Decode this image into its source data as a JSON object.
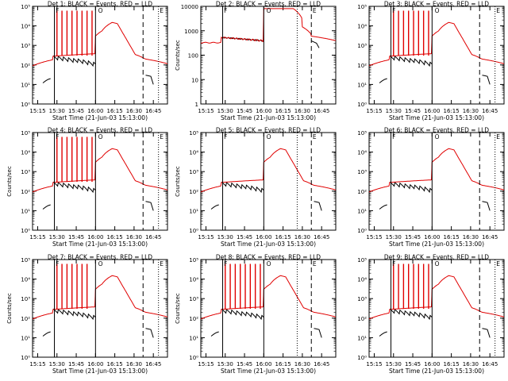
{
  "page": {
    "background": "#ffffff",
    "axis_color": "#000000"
  },
  "chart_data": [
    {
      "type": "line",
      "title": "Det 1: BLACK = Events, RED = LLD",
      "xlabel": "Start Time (21-Jun-03 15:13:00)",
      "ylabel": "",
      "ylog": true,
      "yticks": [
        "10⁰",
        "10¹",
        "10²",
        "10³",
        "10⁴",
        "10⁵"
      ],
      "ylim": [
        1,
        100000
      ],
      "xticks": [
        "15:15",
        "15:30",
        "15:45",
        "16:00",
        "16:15",
        "16:30",
        "16:45"
      ],
      "xlim_minutes": [
        -2,
        103
      ],
      "markers": {
        "solid": [
          15,
          47
        ],
        "dashed": [
          84
        ],
        "dotted": [
          96
        ]
      },
      "marker_labels": [
        {
          "text": "F",
          "x": 16
        },
        {
          "text": "O",
          "x": 49
        },
        {
          "text": "E",
          "x": 97
        }
      ],
      "series": [
        {
          "color": "#000000",
          "shape": "events",
          "level": 1
        },
        {
          "color": "#e00000",
          "shape": "lld",
          "level": 1,
          "spikes": 8
        }
      ]
    },
    {
      "type": "line",
      "title": "Det 2: BLACK = Events, RED = LLD",
      "xlabel": "Start Time (21-Jun-03 15:13:00)",
      "ylabel": "Counts/sec",
      "ylog": true,
      "yticks": [
        "1",
        "10",
        "100",
        "1000",
        "10000"
      ],
      "ylim": [
        1,
        15000
      ],
      "xticks": [
        "15:15",
        "15:30",
        "15:45",
        "16:00",
        "16:15",
        "16:30",
        "16:45"
      ],
      "xlim_minutes": [
        -2,
        103
      ],
      "markers": {
        "solid": [
          15,
          47
        ],
        "dashed": [
          84
        ],
        "dotted": [
          73
        ]
      },
      "marker_labels": [
        {
          "text": "F",
          "x": 16
        },
        {
          "text": "O",
          "x": 49
        },
        {
          "text": "E",
          "x": 85
        }
      ],
      "series": [
        {
          "color": "#000000",
          "shape": "events",
          "level": 2
        },
        {
          "color": "#e00000",
          "shape": "lld",
          "level": 2,
          "spikes": 0
        }
      ]
    },
    {
      "type": "line",
      "title": "Det 3: BLACK = Events, RED = LLD",
      "xlabel": "Start Time (21-Jun-03 15:13:00)",
      "ylabel": "",
      "ylog": true,
      "yticks": [
        "10⁰",
        "10¹",
        "10²",
        "10³",
        "10⁴",
        "10⁵"
      ],
      "ylim": [
        1,
        100000
      ],
      "xticks": [
        "15:15",
        "15:30",
        "15:45",
        "16:00",
        "16:15",
        "16:30",
        "16:45"
      ],
      "xlim_minutes": [
        -2,
        103
      ],
      "markers": {
        "solid": [
          15,
          47
        ],
        "dashed": [
          84
        ],
        "dotted": [
          96
        ]
      },
      "marker_labels": [
        {
          "text": "F",
          "x": 16
        },
        {
          "text": "O",
          "x": 49
        },
        {
          "text": "E",
          "x": 97
        }
      ],
      "series": [
        {
          "color": "#000000",
          "shape": "events",
          "level": 1
        },
        {
          "color": "#e00000",
          "shape": "lld",
          "level": 1,
          "spikes": 8
        }
      ]
    },
    {
      "type": "line",
      "title": "Det 4: BLACK = Events, RED = LLD",
      "xlabel": "Start Time (21-Jun-03 15:13:00)",
      "ylabel": "Counts/sec",
      "ylog": true,
      "yticks": [
        "10⁰",
        "10¹",
        "10²",
        "10³",
        "10⁴",
        "10⁵"
      ],
      "ylim": [
        1,
        100000
      ],
      "xticks": [
        "15:15",
        "15:30",
        "15:45",
        "16:00",
        "16:15",
        "16:30",
        "16:45"
      ],
      "xlim_minutes": [
        -2,
        103
      ],
      "markers": {
        "solid": [
          15,
          47
        ],
        "dashed": [
          84
        ],
        "dotted": [
          96
        ]
      },
      "marker_labels": [
        {
          "text": "F",
          "x": 16
        },
        {
          "text": "O",
          "x": 49
        },
        {
          "text": "E",
          "x": 97
        }
      ],
      "series": [
        {
          "color": "#000000",
          "shape": "events",
          "level": 1
        },
        {
          "color": "#e00000",
          "shape": "lld",
          "level": 1,
          "spikes": 8
        }
      ]
    },
    {
      "type": "line",
      "title": "Det 5: BLACK = Events, RED = LLD",
      "xlabel": "Start Time (21-Jun-03 15:13:00)",
      "ylabel": "Counts/sec",
      "ylog": true,
      "yticks": [
        "10⁰",
        "10¹",
        "10²",
        "10³",
        "10⁴",
        "10⁵"
      ],
      "ylim": [
        1,
        100000
      ],
      "xticks": [
        "15:15",
        "15:30",
        "15:45",
        "16:00",
        "16:15",
        "16:30",
        "16:45"
      ],
      "xlim_minutes": [
        -2,
        103
      ],
      "markers": {
        "solid": [
          15,
          47
        ],
        "dashed": [
          84
        ],
        "dotted": [
          73
        ]
      },
      "marker_labels": [
        {
          "text": "F",
          "x": 16
        },
        {
          "text": "O",
          "x": 49
        },
        {
          "text": "E",
          "x": 85
        }
      ],
      "series": [
        {
          "color": "#000000",
          "shape": "events",
          "level": 1
        },
        {
          "color": "#e00000",
          "shape": "lld",
          "level": 1,
          "spikes": 0
        }
      ]
    },
    {
      "type": "line",
      "title": "Det 6: BLACK = Events, RED = LLD",
      "xlabel": "Start Time (21-Jun-03 15:13:00)",
      "ylabel": "",
      "ylog": true,
      "yticks": [
        "10⁰",
        "10¹",
        "10²",
        "10³",
        "10⁴",
        "10⁵"
      ],
      "ylim": [
        1,
        100000
      ],
      "xticks": [
        "15:15",
        "15:30",
        "15:45",
        "16:00",
        "16:15",
        "16:30",
        "16:45"
      ],
      "xlim_minutes": [
        -2,
        103
      ],
      "markers": {
        "solid": [
          15,
          47
        ],
        "dashed": [
          84
        ],
        "dotted": [
          96
        ]
      },
      "marker_labels": [
        {
          "text": "F",
          "x": 16
        },
        {
          "text": "O",
          "x": 49
        },
        {
          "text": "E",
          "x": 97
        }
      ],
      "series": [
        {
          "color": "#000000",
          "shape": "events",
          "level": 1
        },
        {
          "color": "#e00000",
          "shape": "lld",
          "level": 1,
          "spikes": 0
        }
      ]
    },
    {
      "type": "line",
      "title": "Det 7: BLACK = Events, RED = LLD",
      "xlabel": "Start Time (21-Jun-03 15:13:00)",
      "ylabel": "Counts/sec",
      "ylog": true,
      "yticks": [
        "10⁰",
        "10¹",
        "10²",
        "10³",
        "10⁴",
        "10⁵"
      ],
      "ylim": [
        1,
        100000
      ],
      "xticks": [
        "15:15",
        "15:30",
        "15:45",
        "16:00",
        "16:15",
        "16:30",
        "16:45"
      ],
      "xlim_minutes": [
        -2,
        103
      ],
      "markers": {
        "solid": [
          15,
          47
        ],
        "dashed": [
          84
        ],
        "dotted": [
          96
        ]
      },
      "marker_labels": [
        {
          "text": "F",
          "x": 16
        },
        {
          "text": "O",
          "x": 49
        },
        {
          "text": "E",
          "x": 97
        }
      ],
      "series": [
        {
          "color": "#000000",
          "shape": "events",
          "level": 1
        },
        {
          "color": "#e00000",
          "shape": "lld",
          "level": 1,
          "spikes": 7
        }
      ]
    },
    {
      "type": "line",
      "title": "Det 8: BLACK = Events, RED = LLD",
      "xlabel": "Start Time (21-Jun-03 15:13:00)",
      "ylabel": "Counts/sec",
      "ylog": true,
      "yticks": [
        "10⁰",
        "10¹",
        "10²",
        "10³",
        "10⁴",
        "10⁵"
      ],
      "ylim": [
        1,
        100000
      ],
      "xticks": [
        "15:15",
        "15:30",
        "15:45",
        "16:00",
        "16:15",
        "16:30",
        "16:45"
      ],
      "xlim_minutes": [
        -2,
        103
      ],
      "markers": {
        "solid": [
          15,
          47
        ],
        "dashed": [
          84
        ],
        "dotted": [
          73
        ]
      },
      "marker_labels": [
        {
          "text": "F",
          "x": 16
        },
        {
          "text": "O",
          "x": 49
        },
        {
          "text": "E",
          "x": 85
        }
      ],
      "series": [
        {
          "color": "#000000",
          "shape": "events",
          "level": 1
        },
        {
          "color": "#e00000",
          "shape": "lld",
          "level": 1,
          "spikes": 8
        }
      ]
    },
    {
      "type": "line",
      "title": "Det 9: BLACK = Events, RED = LLD",
      "xlabel": "Start Time (21-Jun-03 15:13:00)",
      "ylabel": "",
      "ylog": true,
      "yticks": [
        "10⁰",
        "10¹",
        "10²",
        "10³",
        "10⁴",
        "10⁵"
      ],
      "ylim": [
        1,
        100000
      ],
      "xticks": [
        "15:15",
        "15:30",
        "15:45",
        "16:00",
        "16:15",
        "16:30",
        "16:45"
      ],
      "xlim_minutes": [
        -2,
        103
      ],
      "markers": {
        "solid": [
          15,
          47
        ],
        "dashed": [
          84
        ],
        "dotted": [
          96
        ]
      },
      "marker_labels": [
        {
          "text": "F",
          "x": 16
        },
        {
          "text": "O",
          "x": 49
        },
        {
          "text": "E",
          "x": 97
        }
      ],
      "series": [
        {
          "color": "#000000",
          "shape": "events",
          "level": 1
        },
        {
          "color": "#e00000",
          "shape": "lld",
          "level": 1,
          "spikes": 8
        }
      ]
    }
  ]
}
